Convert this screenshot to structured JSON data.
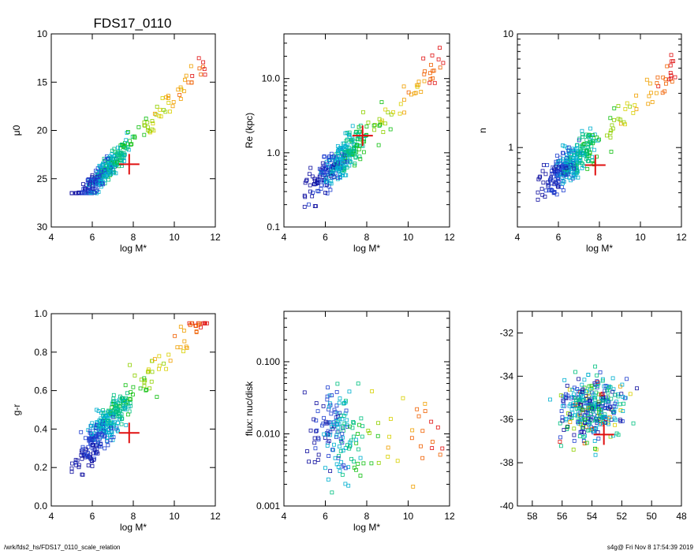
{
  "figure_title": "FDS17_0110",
  "footer": {
    "path": "/wrk/fds2_hs/FDS17_0110_scale_relation",
    "stamp": "s4g@  Fri Nov  8 17:54:39 2019"
  },
  "colors": {
    "palette": [
      "#1010a0",
      "#2040d0",
      "#00b0d0",
      "#00c080",
      "#10c010",
      "#90d000",
      "#d8d000",
      "#f0a000",
      "#f06000",
      "#e01010"
    ],
    "marker": "#e01010"
  },
  "chart_data": [
    {
      "id": "mu0",
      "type": "scatter",
      "xlabel": "log M*",
      "ylabel": "μ0",
      "xlim": [
        4,
        12
      ],
      "ylim": [
        30,
        10
      ],
      "x_ticks": [
        4,
        6,
        8,
        10,
        12
      ],
      "y_ticks": [
        10,
        15,
        20,
        25,
        30
      ],
      "marker_point": [
        7.8,
        23.5
      ],
      "notes": "reversed y axis (surface brightness)"
    },
    {
      "id": "re",
      "type": "scatter",
      "xlabel": "log M*",
      "ylabel": "Re (kpc)",
      "ylabel_main": "R",
      "ylabel_sub": "e",
      "ylabel_rest": " (kpc)",
      "xlim": [
        4,
        12
      ],
      "ylim": [
        0.1,
        40
      ],
      "ylog": true,
      "x_ticks": [
        4,
        6,
        8,
        10,
        12
      ],
      "y_ticks": [
        0.1,
        1.0,
        10.0
      ],
      "y_tick_labels": [
        "0.1",
        "1.0",
        "10.0"
      ],
      "marker_point": [
        7.8,
        1.7
      ]
    },
    {
      "id": "n",
      "type": "scatter",
      "xlabel": "log M*",
      "ylabel": "n",
      "xlim": [
        4,
        12
      ],
      "ylim": [
        0.2,
        10
      ],
      "ylog": true,
      "x_ticks": [
        4,
        6,
        8,
        10,
        12
      ],
      "y_ticks": [
        1,
        10
      ],
      "y_tick_labels": [
        "1",
        "10"
      ],
      "marker_point": [
        7.8,
        0.7
      ]
    },
    {
      "id": "gr",
      "type": "scatter",
      "xlabel": "log M*",
      "ylabel": "g-r",
      "xlim": [
        4,
        12
      ],
      "ylim": [
        0.0,
        1.0
      ],
      "x_ticks": [
        4,
        6,
        8,
        10,
        12
      ],
      "y_ticks": [
        0.0,
        0.2,
        0.4,
        0.6,
        0.8,
        1.0
      ],
      "y_tick_labels": [
        "0.0",
        "0.2",
        "0.4",
        "0.6",
        "0.8",
        "1.0"
      ],
      "marker_point": [
        7.8,
        0.38
      ]
    },
    {
      "id": "flux",
      "type": "scatter",
      "xlabel": "log M*",
      "ylabel": "flux: nuc/disk",
      "xlim": [
        4,
        12
      ],
      "ylim": [
        0.001,
        0.5
      ],
      "ylog": true,
      "x_ticks": [
        4,
        6,
        8,
        10,
        12
      ],
      "y_ticks": [
        0.001,
        0.01,
        0.1
      ],
      "y_tick_labels": [
        "0.001",
        "0.010",
        "0.100"
      ],
      "marker_point": null
    },
    {
      "id": "cmd",
      "type": "scatter",
      "xlabel": "",
      "ylabel": "",
      "xlim": [
        59,
        48
      ],
      "ylim": [
        -40,
        -31
      ],
      "x_ticks": [
        58,
        56,
        54,
        52,
        50,
        48
      ],
      "y_ticks": [
        -40,
        -38,
        -36,
        -34,
        -32
      ],
      "marker_point": [
        53.2,
        -36.7
      ],
      "notes": "reversed x axis"
    }
  ]
}
